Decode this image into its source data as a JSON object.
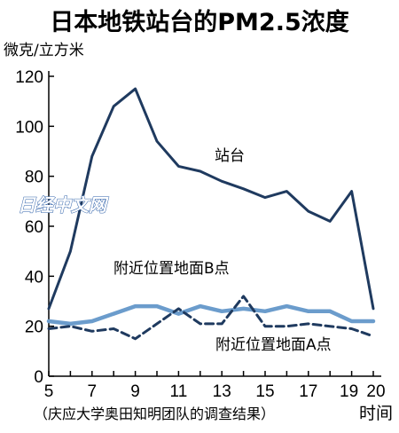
{
  "chart_data": {
    "type": "line",
    "title": "日本地铁站台的PM2.5浓度",
    "ylabel": "微克/立方米",
    "xlabel": "时间",
    "source": "（庆应大学奥田知明团队的调查结果）",
    "watermark": "日经中文网",
    "ylim": [
      0,
      120
    ],
    "xlim": [
      5,
      20.5
    ],
    "yticks": [
      "0",
      "20",
      "40",
      "60",
      "80",
      "100",
      "120"
    ],
    "xticks": [
      "5",
      "7",
      "9",
      "11",
      "13",
      "15",
      "17",
      "19",
      "20"
    ],
    "x": [
      5,
      6,
      7,
      8,
      9,
      10,
      11,
      12,
      13,
      14,
      15,
      16,
      17,
      18,
      19,
      20
    ],
    "series": [
      {
        "name": "站台",
        "color": "#1f3a5f",
        "style": "solid",
        "values": [
          27,
          50,
          88,
          108,
          115,
          94,
          84,
          82,
          78,
          75,
          71.5,
          74,
          66,
          62,
          74,
          27
        ]
      },
      {
        "name": "附近位置地面B点",
        "color": "#6b9ccc",
        "style": "solid",
        "values": [
          22,
          21,
          22,
          25,
          28,
          28,
          25,
          28,
          26,
          27,
          26,
          28,
          26,
          26,
          22,
          22
        ]
      },
      {
        "name": "附近位置地面A点",
        "color": "#1f3a5f",
        "style": "dashed",
        "values": [
          19,
          20,
          18,
          19,
          15,
          21,
          27,
          21,
          21,
          32,
          20,
          20,
          21,
          20,
          19,
          16
        ]
      }
    ]
  }
}
